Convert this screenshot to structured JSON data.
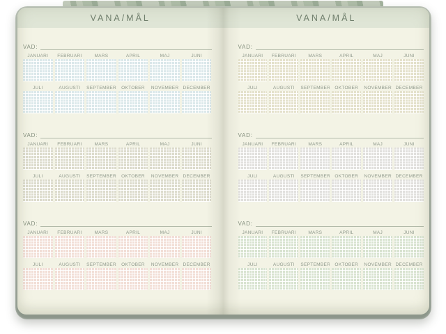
{
  "book": {
    "header_title": "VANA/MÅL",
    "vad_label": "VAD:",
    "months_top": [
      "JANUARI",
      "FEBRUARI",
      "MARS",
      "APRIL",
      "MAJ",
      "JUNI"
    ],
    "months_bottom": [
      "JULI",
      "AUGUSTI",
      "SEPTEMBER",
      "OKTOBER",
      "NOVEMBER",
      "DECEMBER"
    ],
    "pages": [
      {
        "side": "left",
        "sections": [
          {
            "grid_color": "#dbe8ea"
          },
          {
            "grid_color": "#dcdbcc"
          },
          {
            "grid_color": "#f2ded6"
          }
        ]
      },
      {
        "side": "right",
        "sections": [
          {
            "grid_color": "#e4e1cb"
          },
          {
            "grid_color": "#e1e0dd"
          },
          {
            "grid_color": "#d8e3d0"
          }
        ]
      }
    ],
    "colors": {
      "page": "#f3f3e5",
      "header_band": "#dfe5d6",
      "header_text": "#6f7e6c",
      "cover": "#99a295",
      "label_text": "#85907f",
      "month_text": "#8f998c",
      "writing_line": "#b2baa9"
    }
  }
}
